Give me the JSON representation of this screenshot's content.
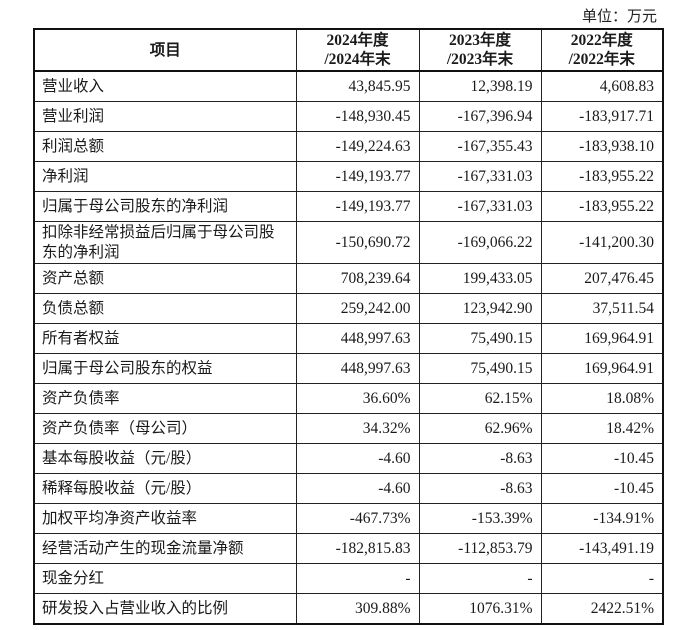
{
  "unit_label": "单位：万元",
  "table": {
    "headers": [
      {
        "line1": "项目",
        "line2": ""
      },
      {
        "line1": "2024年度",
        "line2": "/2024年末"
      },
      {
        "line1": "2023年度",
        "line2": "/2023年末"
      },
      {
        "line1": "2022年度",
        "line2": "/2022年末"
      }
    ],
    "rows": [
      {
        "item": "营业收入",
        "y2024": "43,845.95",
        "y2023": "12,398.19",
        "y2022": "4,608.83"
      },
      {
        "item": "营业利润",
        "y2024": "-148,930.45",
        "y2023": "-167,396.94",
        "y2022": "-183,917.71"
      },
      {
        "item": "利润总额",
        "y2024": "-149,224.63",
        "y2023": "-167,355.43",
        "y2022": "-183,938.10"
      },
      {
        "item": "净利润",
        "y2024": "-149,193.77",
        "y2023": "-167,331.03",
        "y2022": "-183,955.22"
      },
      {
        "item": "归属于母公司股东的净利润",
        "y2024": "-149,193.77",
        "y2023": "-167,331.03",
        "y2022": "-183,955.22"
      },
      {
        "item": "扣除非经常损益后归属于母公司股东的净利润",
        "y2024": "-150,690.72",
        "y2023": "-169,066.22",
        "y2022": "-141,200.30"
      },
      {
        "item": "资产总额",
        "y2024": "708,239.64",
        "y2023": "199,433.05",
        "y2022": "207,476.45"
      },
      {
        "item": "负债总额",
        "y2024": "259,242.00",
        "y2023": "123,942.90",
        "y2022": "37,511.54"
      },
      {
        "item": "所有者权益",
        "y2024": "448,997.63",
        "y2023": "75,490.15",
        "y2022": "169,964.91"
      },
      {
        "item": "归属于母公司股东的权益",
        "y2024": "448,997.63",
        "y2023": "75,490.15",
        "y2022": "169,964.91"
      },
      {
        "item": "资产负债率",
        "y2024": "36.60%",
        "y2023": "62.15%",
        "y2022": "18.08%"
      },
      {
        "item": "资产负债率（母公司）",
        "y2024": "34.32%",
        "y2023": "62.96%",
        "y2022": "18.42%"
      },
      {
        "item": "基本每股收益（元/股）",
        "y2024": "-4.60",
        "y2023": "-8.63",
        "y2022": "-10.45"
      },
      {
        "item": "稀释每股收益（元/股）",
        "y2024": "-4.60",
        "y2023": "-8.63",
        "y2022": "-10.45"
      },
      {
        "item": "加权平均净资产收益率",
        "y2024": "-467.73%",
        "y2023": "-153.39%",
        "y2022": "-134.91%"
      },
      {
        "item": "经营活动产生的现金流量净额",
        "y2024": "-182,815.83",
        "y2023": "-112,853.79",
        "y2022": "-143,491.19"
      },
      {
        "item": "现金分红",
        "y2024": "-",
        "y2023": "-",
        "y2022": "-"
      },
      {
        "item": "研发投入占营业收入的比例",
        "y2024": "309.88%",
        "y2023": "1076.31%",
        "y2022": "2422.51%"
      }
    ]
  }
}
